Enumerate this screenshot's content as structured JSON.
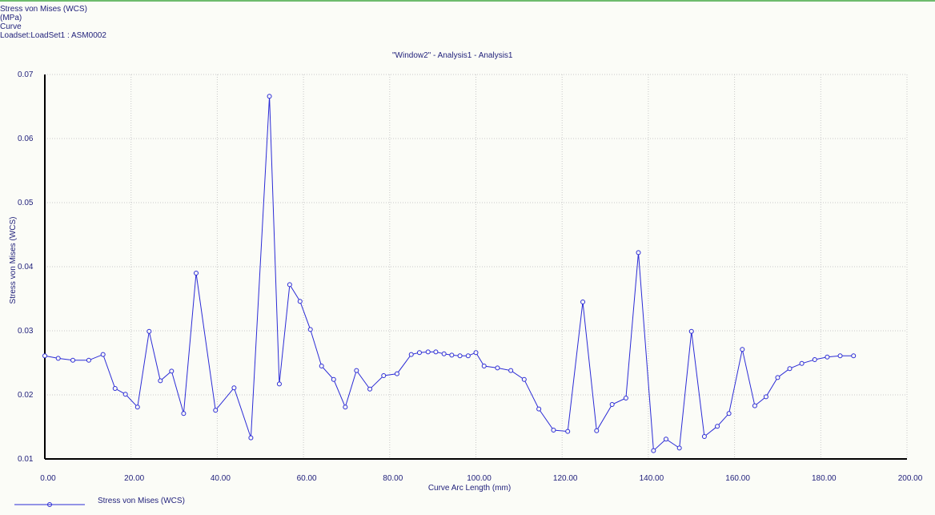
{
  "header": {
    "line1": "Stress von Mises (WCS)",
    "line2": "(MPa)",
    "line3": "Curve",
    "line4": "Loadset:LoadSet1 :  ASM0002"
  },
  "colors": {
    "series": "#2b2bd6",
    "axis": "#000000",
    "grid": "#c8c8c8",
    "text": "#1f1f7a",
    "top_border": "#6dbb6d"
  },
  "chart_data": {
    "type": "line",
    "title": "\"Window2\" - Analysis1 - Analysis1",
    "xlabel": "Curve Arc Length (mm)",
    "ylabel": "Stress von Mises (WCS)",
    "xlim": [
      0,
      200
    ],
    "ylim": [
      0.01,
      0.07
    ],
    "x_ticks": [
      0,
      20,
      40,
      60,
      80,
      100,
      120,
      140,
      160,
      180,
      200
    ],
    "x_tick_labels": [
      "0.00",
      "20.00",
      "40.00",
      "60.00",
      "80.00",
      "100.00",
      "120.00",
      "140.00",
      "160.00",
      "180.00",
      "200.00"
    ],
    "y_ticks": [
      0.01,
      0.02,
      0.03,
      0.04,
      0.05,
      0.06,
      0.07
    ],
    "y_tick_labels": [
      "0.01",
      "0.02",
      "0.03",
      "0.04",
      "0.05",
      "0.06",
      "0.07"
    ],
    "grid": true,
    "legend_position": "bottom-left",
    "series": [
      {
        "name": "Stress von Mises (WCS)",
        "x": [
          0.0,
          3.1,
          6.5,
          10.2,
          13.5,
          16.3,
          18.7,
          21.5,
          24.2,
          26.8,
          29.4,
          32.2,
          35.1,
          39.6,
          43.9,
          47.8,
          52.1,
          54.4,
          56.8,
          59.2,
          61.6,
          64.2,
          67.0,
          69.7,
          72.3,
          75.4,
          78.6,
          81.7,
          85.0,
          86.9,
          88.9,
          90.7,
          92.6,
          94.4,
          96.3,
          98.2,
          100.0,
          101.9,
          105.0,
          108.1,
          111.2,
          114.6,
          118.0,
          121.3,
          124.8,
          128.0,
          131.6,
          134.8,
          137.7,
          141.2,
          144.1,
          147.2,
          150.0,
          153.0,
          156.0,
          158.7,
          161.8,
          164.7,
          167.3,
          170.0,
          172.8,
          175.6,
          178.6,
          181.5,
          184.5,
          187.6
        ],
        "y": [
          0.0261,
          0.0257,
          0.0254,
          0.0254,
          0.0263,
          0.021,
          0.0201,
          0.0181,
          0.0299,
          0.0222,
          0.0237,
          0.0171,
          0.039,
          0.0176,
          0.0211,
          0.0133,
          0.0666,
          0.0217,
          0.0372,
          0.0346,
          0.0302,
          0.0245,
          0.0224,
          0.0181,
          0.0238,
          0.0209,
          0.023,
          0.0233,
          0.0263,
          0.0266,
          0.0267,
          0.0267,
          0.0264,
          0.0262,
          0.0261,
          0.0261,
          0.0266,
          0.0245,
          0.0242,
          0.0238,
          0.0224,
          0.0178,
          0.0145,
          0.0143,
          0.0345,
          0.0144,
          0.0185,
          0.0195,
          0.0422,
          0.0113,
          0.0131,
          0.0117,
          0.0299,
          0.0135,
          0.0151,
          0.0171,
          0.0271,
          0.0183,
          0.0197,
          0.0227,
          0.0241,
          0.0249,
          0.0255,
          0.0259,
          0.0261,
          0.0261
        ]
      }
    ]
  },
  "legend": {
    "label": "Stress von Mises (WCS)"
  }
}
